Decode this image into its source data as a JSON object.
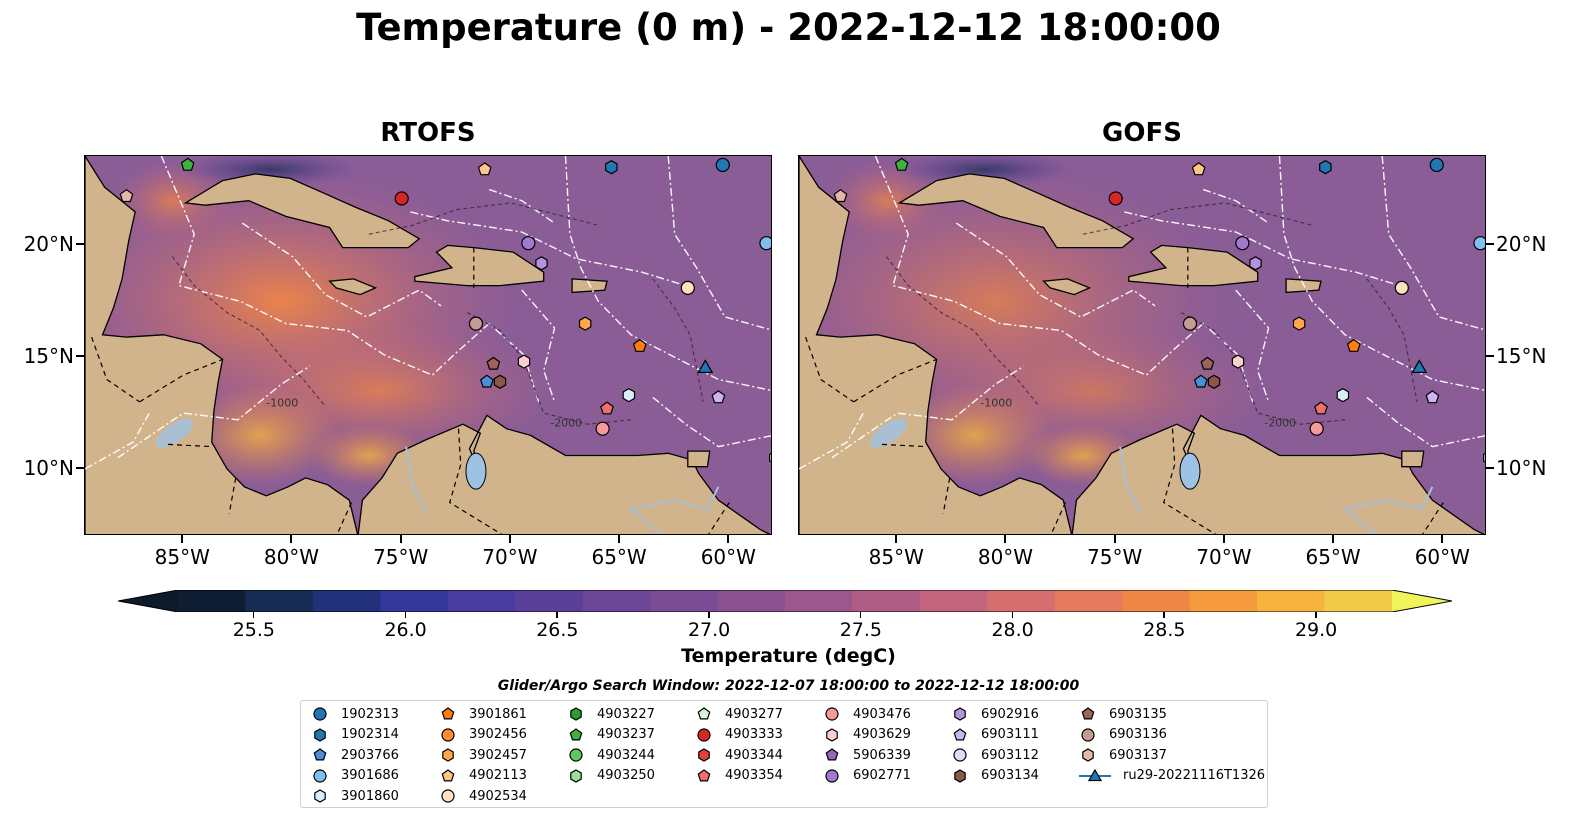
{
  "title": "Temperature (0 m) - 2022-12-12 18:00:00",
  "panels": [
    {
      "title": "RTOFS"
    },
    {
      "title": "GOFS"
    }
  ],
  "map": {
    "lon_range": [
      -89.5,
      -58.0
    ],
    "lat_range": [
      7.0,
      24.0
    ],
    "x_ticks": [
      "85°W",
      "80°W",
      "75°W",
      "70°W",
      "65°W",
      "60°W"
    ],
    "x_tick_values": [
      -85,
      -80,
      -75,
      -70,
      -65,
      -60
    ],
    "y_ticks": [
      "20°N",
      "15°N",
      "10°N"
    ],
    "y_tick_values": [
      20,
      15,
      10
    ],
    "contour_label": "-1000",
    "contour_label_2": "-2000",
    "land_color": "#d2b48c",
    "ocean_color": "#8b5d96"
  },
  "colorbar": {
    "label": "Temperature (degC)",
    "min": 25.25,
    "max": 29.25,
    "step": 0.25,
    "tick_labels": [
      "25.5",
      "26.0",
      "26.5",
      "27.0",
      "27.5",
      "28.0",
      "28.5",
      "29.0"
    ],
    "tick_values": [
      25.5,
      26.0,
      26.5,
      27.0,
      27.5,
      28.0,
      28.5,
      29.0
    ],
    "colors": [
      "#0f1d33",
      "#182b52",
      "#22317a",
      "#33389a",
      "#4a3b9f",
      "#5a3f99",
      "#6b4596",
      "#7b4c93",
      "#8b5291",
      "#9c588c",
      "#ae5e85",
      "#c2657c",
      "#d56f6f",
      "#e47a5d",
      "#ef8646",
      "#f59a3d",
      "#f6b33e",
      "#f2cb4b"
    ],
    "over_color": "#f0f45a",
    "under_color": "#0c1a2a"
  },
  "legend": {
    "title": "Glider/Argo Search Window: 2022-12-07 18:00:00 to 2022-12-12 18:00:00",
    "columns": [
      [
        {
          "label": "1902313",
          "marker": "circle",
          "color": "#1f77b4"
        },
        {
          "label": "1902314",
          "marker": "hexagon",
          "color": "#1f77b4"
        },
        {
          "label": "2903766",
          "marker": "pentagon",
          "color": "#4a90d9"
        },
        {
          "label": "3901686",
          "marker": "circle",
          "color": "#7ec0ee"
        },
        {
          "label": "3901860",
          "marker": "hexagon",
          "color": "#d8ecfa"
        }
      ],
      [
        {
          "label": "3901861",
          "marker": "pentagon",
          "color": "#ff7f0e"
        },
        {
          "label": "3902456",
          "marker": "circle",
          "color": "#ff8c2a"
        },
        {
          "label": "3902457",
          "marker": "hexagon",
          "color": "#ffa64d"
        },
        {
          "label": "4902113",
          "marker": "pentagon",
          "color": "#ffc48a"
        },
        {
          "label": "4902534",
          "marker": "circle",
          "color": "#ffe0c0"
        }
      ],
      [
        {
          "label": "4903227",
          "marker": "hexagon",
          "color": "#2ca02c"
        },
        {
          "label": "4903237",
          "marker": "pentagon",
          "color": "#3cb33c"
        },
        {
          "label": "4903244",
          "marker": "circle",
          "color": "#5dc95d"
        },
        {
          "label": "4903250",
          "marker": "hexagon",
          "color": "#98e398"
        }
      ],
      [
        {
          "label": "4903277",
          "marker": "pentagon",
          "color": "#d6f5d6"
        },
        {
          "label": "4903333",
          "marker": "circle",
          "color": "#d62728"
        },
        {
          "label": "4903344",
          "marker": "hexagon",
          "color": "#e0403f"
        },
        {
          "label": "4903354",
          "marker": "pentagon",
          "color": "#f07070"
        }
      ],
      [
        {
          "label": "4903476",
          "marker": "circle",
          "color": "#f59a9a"
        },
        {
          "label": "4903629",
          "marker": "hexagon",
          "color": "#fcd0d0"
        },
        {
          "label": "5906339",
          "marker": "pentagon",
          "color": "#9467bd"
        },
        {
          "label": "6902771",
          "marker": "circle",
          "color": "#a07ad0"
        }
      ],
      [
        {
          "label": "6902916",
          "marker": "hexagon",
          "color": "#b593e0"
        },
        {
          "label": "6903111",
          "marker": "pentagon",
          "color": "#cfb3ee"
        },
        {
          "label": "6903112",
          "marker": "circle",
          "color": "#e8d8f8"
        },
        {
          "label": "6903134",
          "marker": "hexagon",
          "color": "#8c564b"
        }
      ],
      [
        {
          "label": "6903135",
          "marker": "pentagon",
          "color": "#9c6558"
        },
        {
          "label": "6903136",
          "marker": "circle",
          "color": "#c49c94"
        },
        {
          "label": "6903137",
          "marker": "hexagon",
          "color": "#e2b8a8"
        },
        {
          "label": "ru29-20221116T1326",
          "marker": "triangle-line",
          "color": "#1f77b4"
        }
      ]
    ]
  },
  "floats": [
    {
      "id": "4903237",
      "lon": -84.8,
      "lat": 23.6,
      "marker": "pentagon",
      "color": "#3cb33c"
    },
    {
      "id": "4902113",
      "lon": -71.2,
      "lat": 23.4,
      "marker": "pentagon",
      "color": "#ffc48a"
    },
    {
      "id": "1902314",
      "lon": -65.4,
      "lat": 23.5,
      "marker": "hexagon",
      "color": "#1f77b4"
    },
    {
      "id": "1902313",
      "lon": -60.3,
      "lat": 23.6,
      "marker": "circle",
      "color": "#1f77b4"
    },
    {
      "id": "6903137",
      "lon": -87.6,
      "lat": 22.2,
      "marker": "pentagon",
      "color": "#e2b8a8"
    },
    {
      "id": "4903333",
      "lon": -75.0,
      "lat": 22.1,
      "marker": "circle",
      "color": "#d62728"
    },
    {
      "id": "3901686",
      "lon": -58.3,
      "lat": 20.1,
      "marker": "circle",
      "color": "#7ec0ee"
    },
    {
      "id": "6902771",
      "lon": -69.2,
      "lat": 20.1,
      "marker": "circle",
      "color": "#a07ad0"
    },
    {
      "id": "6902916",
      "lon": -68.6,
      "lat": 19.2,
      "marker": "hexagon",
      "color": "#b593e0"
    },
    {
      "id": "4902534",
      "lon": -61.9,
      "lat": 18.1,
      "marker": "circle",
      "color": "#ffe0c0"
    },
    {
      "id": "6903136",
      "lon": -71.6,
      "lat": 16.5,
      "marker": "circle",
      "color": "#c49c94"
    },
    {
      "id": "3902457",
      "lon": -66.6,
      "lat": 16.5,
      "marker": "hexagon",
      "color": "#ffa64d"
    },
    {
      "id": "3901861",
      "lon": -64.1,
      "lat": 15.5,
      "marker": "pentagon",
      "color": "#ff7f0e"
    },
    {
      "id": "6903135",
      "lon": -70.8,
      "lat": 14.7,
      "marker": "pentagon",
      "color": "#9c6558"
    },
    {
      "id": "4903629",
      "lon": -69.4,
      "lat": 14.8,
      "marker": "hexagon",
      "color": "#fcd0d0"
    },
    {
      "id": "2903766",
      "lon": -71.1,
      "lat": 13.9,
      "marker": "pentagon",
      "color": "#4a90d9"
    },
    {
      "id": "6903134",
      "lon": -70.5,
      "lat": 13.9,
      "marker": "hexagon",
      "color": "#8c564b"
    },
    {
      "id": "ru29-20221116T1326",
      "lon": -61.1,
      "lat": 14.5,
      "marker": "triangle",
      "color": "#1f77b4"
    },
    {
      "id": "6903111",
      "lon": -60.5,
      "lat": 13.2,
      "marker": "pentagon",
      "color": "#cfb3ee"
    },
    {
      "id": "3901860",
      "lon": -64.6,
      "lat": 13.3,
      "marker": "hexagon",
      "color": "#d8ecfa"
    },
    {
      "id": "4903354",
      "lon": -65.6,
      "lat": 12.7,
      "marker": "pentagon",
      "color": "#f07070"
    },
    {
      "id": "4903476",
      "lon": -65.8,
      "lat": 11.8,
      "marker": "circle",
      "color": "#f59a9a"
    },
    {
      "id": "4903250",
      "lon": -57.9,
      "lat": 10.5,
      "marker": "hexagon",
      "color": "#98e398"
    }
  ]
}
